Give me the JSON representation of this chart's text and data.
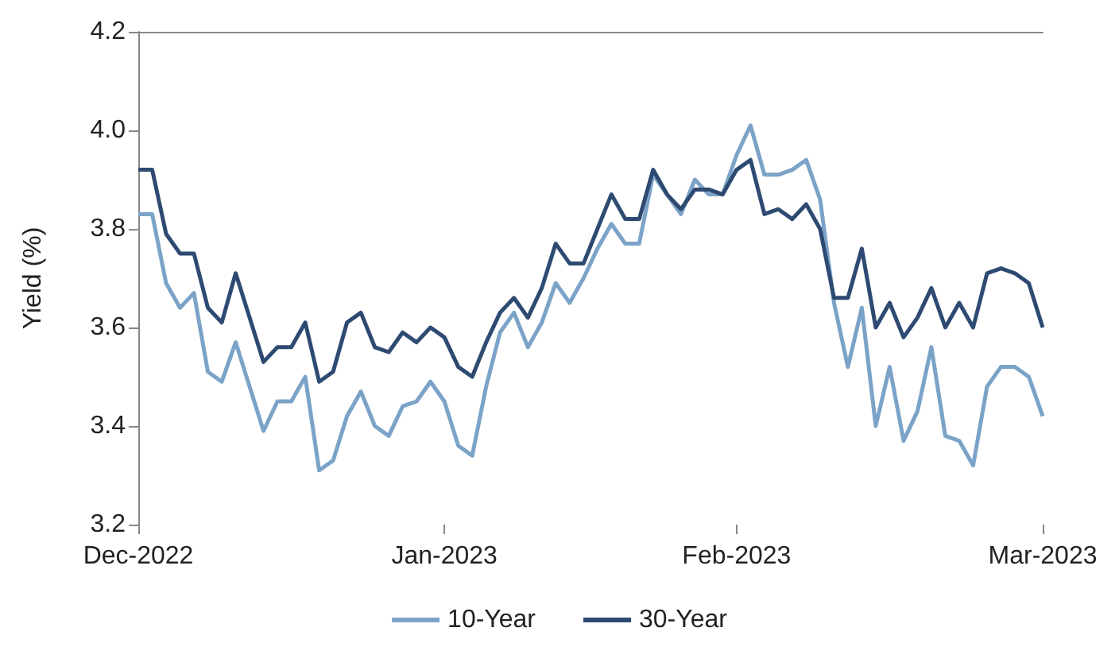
{
  "chart_data": {
    "type": "line",
    "ylabel": "Yield (%)",
    "categories": [
      "Dec-2022",
      null,
      null,
      null,
      null,
      null,
      null,
      null,
      null,
      null,
      null,
      null,
      null,
      null,
      null,
      null,
      null,
      null,
      null,
      null,
      null,
      null,
      "Jan-2023",
      null,
      null,
      null,
      null,
      null,
      null,
      null,
      null,
      null,
      null,
      null,
      null,
      null,
      null,
      null,
      null,
      null,
      null,
      null,
      null,
      "Feb-2023",
      null,
      null,
      null,
      null,
      null,
      null,
      null,
      null,
      null,
      null,
      null,
      null,
      null,
      null,
      null,
      null,
      null,
      null,
      null,
      null,
      null,
      "Mar-2023"
    ],
    "series": [
      {
        "name": "10-Year",
        "color": "#7ba3c8",
        "values": [
          3.83,
          3.83,
          3.69,
          3.64,
          3.67,
          3.51,
          3.49,
          3.57,
          3.48,
          3.39,
          3.45,
          3.45,
          3.5,
          3.31,
          3.33,
          3.42,
          3.47,
          3.4,
          3.38,
          3.44,
          3.45,
          3.49,
          3.45,
          3.36,
          3.34,
          3.48,
          3.59,
          3.63,
          3.56,
          3.61,
          3.69,
          3.65,
          3.7,
          3.76,
          3.81,
          3.77,
          3.77,
          3.91,
          3.87,
          3.83,
          3.9,
          3.87,
          3.87,
          3.95,
          4.01,
          3.91,
          3.91,
          3.92,
          3.94,
          3.86,
          3.65,
          3.52,
          3.64,
          3.4,
          3.52,
          3.37,
          3.43,
          3.56,
          3.38,
          3.37,
          3.32,
          3.48,
          3.52,
          3.52,
          3.5,
          3.42
        ]
      },
      {
        "name": "30-Year",
        "color": "#2e4a72",
        "values": [
          3.92,
          3.92,
          3.79,
          3.75,
          3.75,
          3.64,
          3.61,
          3.71,
          3.62,
          3.53,
          3.56,
          3.56,
          3.61,
          3.49,
          3.51,
          3.61,
          3.63,
          3.56,
          3.55,
          3.59,
          3.57,
          3.6,
          3.58,
          3.52,
          3.5,
          3.57,
          3.63,
          3.66,
          3.62,
          3.68,
          3.77,
          3.73,
          3.73,
          3.8,
          3.87,
          3.82,
          3.82,
          3.92,
          3.87,
          3.84,
          3.88,
          3.88,
          3.87,
          3.92,
          3.94,
          3.83,
          3.84,
          3.82,
          3.85,
          3.8,
          3.66,
          3.66,
          3.76,
          3.6,
          3.65,
          3.58,
          3.62,
          3.68,
          3.6,
          3.65,
          3.6,
          3.71,
          3.72,
          3.71,
          3.69,
          3.6
        ]
      }
    ],
    "ylim": [
      3.2,
      4.2
    ],
    "yticks": [
      3.2,
      3.4,
      3.6,
      3.8,
      {
        "value": 4,
        "label": "4.0"
      },
      4.2
    ],
    "legend": "bottom",
    "marker": "none",
    "line_style": "solid"
  }
}
